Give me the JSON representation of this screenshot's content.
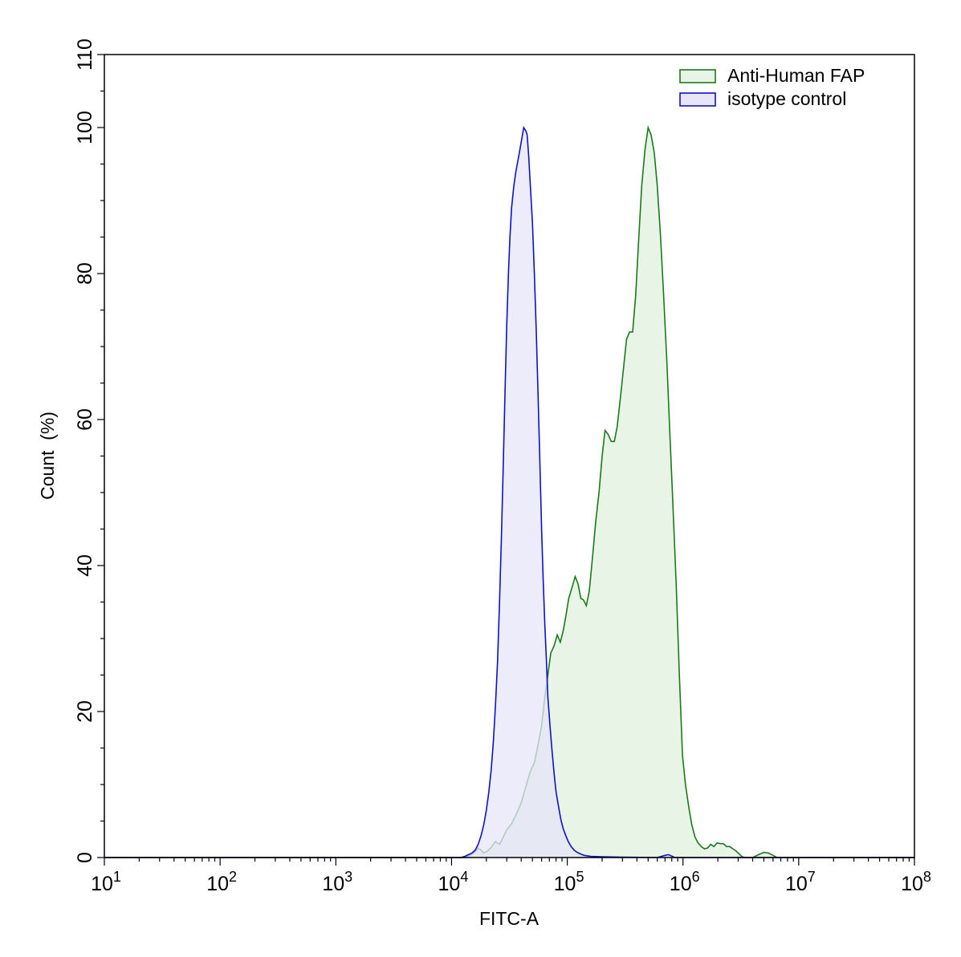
{
  "chart_data": {
    "type": "area",
    "xlabel": "FITC-A",
    "ylabel": "Count  (%)",
    "xscale": "log",
    "xlim": [
      10,
      100000000
    ],
    "ylim": [
      0,
      110
    ],
    "yticks": [
      0,
      20,
      40,
      60,
      80,
      100,
      110
    ],
    "xticks": [
      {
        "value": 10,
        "base": "10",
        "exp": "1"
      },
      {
        "value": 100,
        "base": "10",
        "exp": "2"
      },
      {
        "value": 1000,
        "base": "10",
        "exp": "3"
      },
      {
        "value": 10000,
        "base": "10",
        "exp": "4"
      },
      {
        "value": 100000,
        "base": "10",
        "exp": "5"
      },
      {
        "value": 1000000,
        "base": "10",
        "exp": "6"
      },
      {
        "value": 10000000,
        "base": "10",
        "exp": "7"
      },
      {
        "value": 100000000,
        "base": "10",
        "exp": "8"
      }
    ],
    "grid": false,
    "legend_position": "top-right",
    "series": [
      {
        "name": "Anti-Human FAP",
        "stroke": "#1a7a1a",
        "fill": "#e8f4e6",
        "points": [
          [
            10,
            0
          ],
          [
            13000,
            0
          ],
          [
            14500,
            0.3
          ],
          [
            16000,
            0.8
          ],
          [
            17000,
            1.3
          ],
          [
            18000,
            1.0
          ],
          [
            19000,
            0.6
          ],
          [
            20500,
            0.9
          ],
          [
            22000,
            1.4
          ],
          [
            24000,
            2.2
          ],
          [
            26000,
            1.8
          ],
          [
            28000,
            2.8
          ],
          [
            30000,
            3.8
          ],
          [
            33000,
            4.6
          ],
          [
            36000,
            5.8
          ],
          [
            40000,
            7.5
          ],
          [
            44000,
            9.8
          ],
          [
            48000,
            11.8
          ],
          [
            52000,
            13.0
          ],
          [
            56000,
            15.5
          ],
          [
            60000,
            18.0
          ],
          [
            64000,
            22.0
          ],
          [
            68000,
            25.0
          ],
          [
            72000,
            28.0
          ],
          [
            77000,
            29.0
          ],
          [
            82000,
            30.5
          ],
          [
            87000,
            29.5
          ],
          [
            92000,
            31.0
          ],
          [
            97000,
            33.0
          ],
          [
            103000,
            35.5
          ],
          [
            110000,
            37.0
          ],
          [
            117000,
            38.5
          ],
          [
            124000,
            37.5
          ],
          [
            131000,
            35.5
          ],
          [
            138000,
            35.3
          ],
          [
            146000,
            34.5
          ],
          [
            155000,
            36.5
          ],
          [
            165000,
            41.0
          ],
          [
            176000,
            46.0
          ],
          [
            188000,
            50.0
          ],
          [
            200000,
            55.0
          ],
          [
            212000,
            58.5
          ],
          [
            225000,
            58.0
          ],
          [
            240000,
            57.0
          ],
          [
            255000,
            57.0
          ],
          [
            270000,
            59.0
          ],
          [
            288000,
            63.0
          ],
          [
            306000,
            67.0
          ],
          [
            325000,
            71.0
          ],
          [
            345000,
            72.0
          ],
          [
            367000,
            72.0
          ],
          [
            390000,
            77.0
          ],
          [
            415000,
            85.0
          ],
          [
            440000,
            92.0
          ],
          [
            470000,
            97.0
          ],
          [
            500000,
            100.0
          ],
          [
            530000,
            99.0
          ],
          [
            565000,
            96.5
          ],
          [
            600000,
            92.0
          ],
          [
            640000,
            85.0
          ],
          [
            680000,
            77.0
          ],
          [
            725000,
            68.0
          ],
          [
            770000,
            58.0
          ],
          [
            820000,
            48.0
          ],
          [
            875000,
            37.0
          ],
          [
            930000,
            25.0
          ],
          [
            990000,
            14.0
          ],
          [
            1050000,
            10.0
          ],
          [
            1120000,
            7.0
          ],
          [
            1190000,
            4.5
          ],
          [
            1270000,
            2.8
          ],
          [
            1350000,
            2.0
          ],
          [
            1440000,
            1.5
          ],
          [
            1530000,
            1.2
          ],
          [
            1630000,
            1.3
          ],
          [
            1740000,
            1.8
          ],
          [
            1850000,
            1.5
          ],
          [
            1970000,
            2.0
          ],
          [
            2100000,
            1.9
          ],
          [
            2230000,
            1.9
          ],
          [
            2380000,
            1.5
          ],
          [
            2530000,
            1.5
          ],
          [
            2700000,
            1.2
          ],
          [
            2870000,
            0.9
          ],
          [
            3060000,
            0.5
          ],
          [
            3250000,
            0.1
          ],
          [
            3500000,
            0
          ],
          [
            4000000,
            0
          ],
          [
            4500000,
            0.4
          ],
          [
            5000000,
            0.7
          ],
          [
            5500000,
            0.6
          ],
          [
            6000000,
            0.3
          ],
          [
            6500000,
            0
          ],
          [
            100000000,
            0
          ]
        ]
      },
      {
        "name": "isotype control",
        "stroke": "#1010c8",
        "fill": "#e6e6f8",
        "points": [
          [
            10,
            0
          ],
          [
            12000,
            0
          ],
          [
            13000,
            0.15
          ],
          [
            14000,
            0.4
          ],
          [
            15000,
            0.6
          ],
          [
            16000,
            1.0
          ],
          [
            17000,
            1.8
          ],
          [
            18000,
            3.0
          ],
          [
            19000,
            4.5
          ],
          [
            20000,
            6.5
          ],
          [
            21000,
            9.0
          ],
          [
            22000,
            12.0
          ],
          [
            23000,
            16.0
          ],
          [
            24000,
            21.0
          ],
          [
            25000,
            27.0
          ],
          [
            26000,
            35.0
          ],
          [
            27000,
            44.0
          ],
          [
            28000,
            54.0
          ],
          [
            29000,
            64.0
          ],
          [
            30000,
            73.0
          ],
          [
            31000,
            80.0
          ],
          [
            32000,
            85.0
          ],
          [
            33000,
            89.0
          ],
          [
            34500,
            92.0
          ],
          [
            36000,
            94.0
          ],
          [
            38000,
            96.0
          ],
          [
            40000,
            98.0
          ],
          [
            42000,
            100.0
          ],
          [
            44000,
            99.5
          ],
          [
            45000,
            99.0
          ],
          [
            46500,
            96.0
          ],
          [
            48000,
            92.0
          ],
          [
            50000,
            87.0
          ],
          [
            52000,
            80.0
          ],
          [
            54000,
            72.0
          ],
          [
            56000,
            63.0
          ],
          [
            58000,
            54.0
          ],
          [
            60000,
            45.0
          ],
          [
            62000,
            38.0
          ],
          [
            64000,
            32.0
          ],
          [
            66000,
            27.0
          ],
          [
            68000,
            22.0
          ],
          [
            71000,
            18.0
          ],
          [
            74000,
            14.5
          ],
          [
            77000,
            11.5
          ],
          [
            80000,
            9.0
          ],
          [
            84000,
            7.0
          ],
          [
            88000,
            5.2
          ],
          [
            92000,
            4.0
          ],
          [
            97000,
            3.0
          ],
          [
            102000,
            2.2
          ],
          [
            108000,
            1.5
          ],
          [
            115000,
            1.0
          ],
          [
            122000,
            0.7
          ],
          [
            130000,
            0.5
          ],
          [
            140000,
            0.3
          ],
          [
            160000,
            0.15
          ],
          [
            200000,
            0.1
          ],
          [
            300000,
            0.05
          ],
          [
            600000,
            0
          ],
          [
            700000,
            0.3
          ],
          [
            750000,
            0.4
          ],
          [
            800000,
            0.2
          ],
          [
            850000,
            0
          ],
          [
            100000000,
            0
          ]
        ]
      }
    ]
  }
}
